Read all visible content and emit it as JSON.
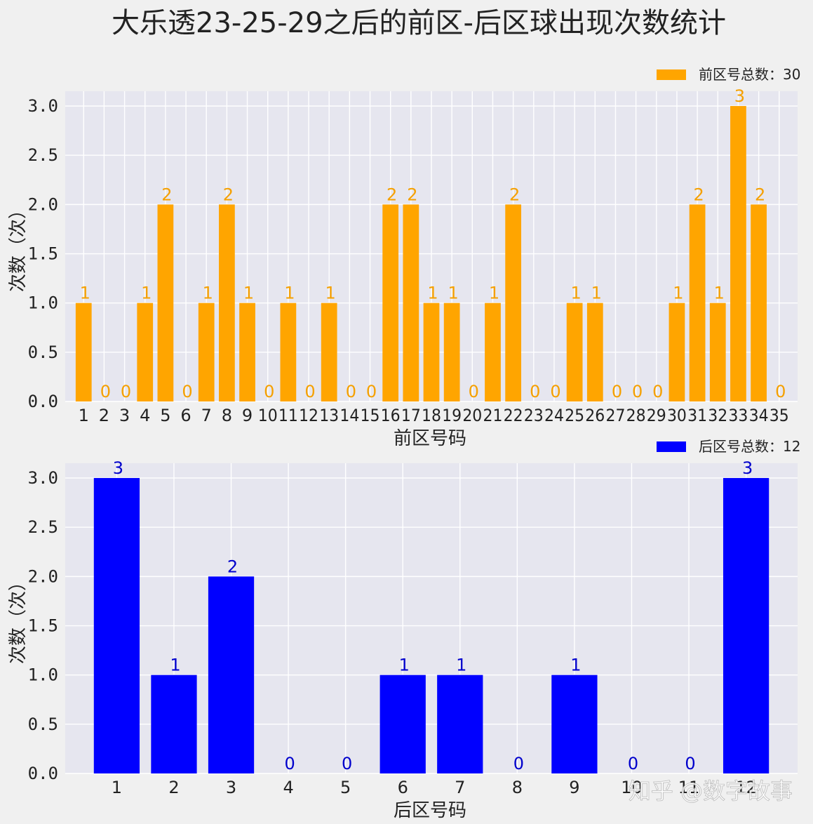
{
  "title": "大乐透23-25-29之后的前区-后区球出现次数统计",
  "watermark": "知乎 @数字故事",
  "chart_data": [
    {
      "type": "bar",
      "color": "#ffa500",
      "xlabel": "前区号码",
      "ylabel": "次数（次）",
      "legend": "前区号总数：30",
      "legend_position": "top-right",
      "grid": true,
      "ylim": [
        0,
        3.15
      ],
      "yticks": [
        "0.0",
        "0.5",
        "1.0",
        "1.5",
        "2.0",
        "2.5",
        "3.0"
      ],
      "categories": [
        "1",
        "2",
        "3",
        "4",
        "5",
        "6",
        "7",
        "8",
        "9",
        "10",
        "11",
        "12",
        "13",
        "14",
        "15",
        "16",
        "17",
        "18",
        "19",
        "20",
        "21",
        "22",
        "23",
        "24",
        "25",
        "26",
        "27",
        "28",
        "29",
        "30",
        "31",
        "32",
        "33",
        "34",
        "35"
      ],
      "values": [
        1,
        0,
        0,
        1,
        2,
        0,
        1,
        2,
        1,
        0,
        1,
        0,
        1,
        0,
        0,
        2,
        2,
        1,
        1,
        0,
        1,
        2,
        0,
        0,
        1,
        1,
        0,
        0,
        0,
        1,
        2,
        1,
        3,
        2,
        0
      ]
    },
    {
      "type": "bar",
      "color": "#0000ff",
      "xlabel": "后区号码",
      "ylabel": "次数（次）",
      "legend": "后区号总数：12",
      "legend_position": "top-right",
      "grid": true,
      "ylim": [
        0,
        3.15
      ],
      "yticks": [
        "0.0",
        "0.5",
        "1.0",
        "1.5",
        "2.0",
        "2.5",
        "3.0"
      ],
      "categories": [
        "1",
        "2",
        "3",
        "4",
        "5",
        "6",
        "7",
        "8",
        "9",
        "10",
        "11",
        "12"
      ],
      "values": [
        3,
        1,
        2,
        0,
        0,
        1,
        1,
        0,
        1,
        0,
        0,
        3
      ]
    }
  ]
}
